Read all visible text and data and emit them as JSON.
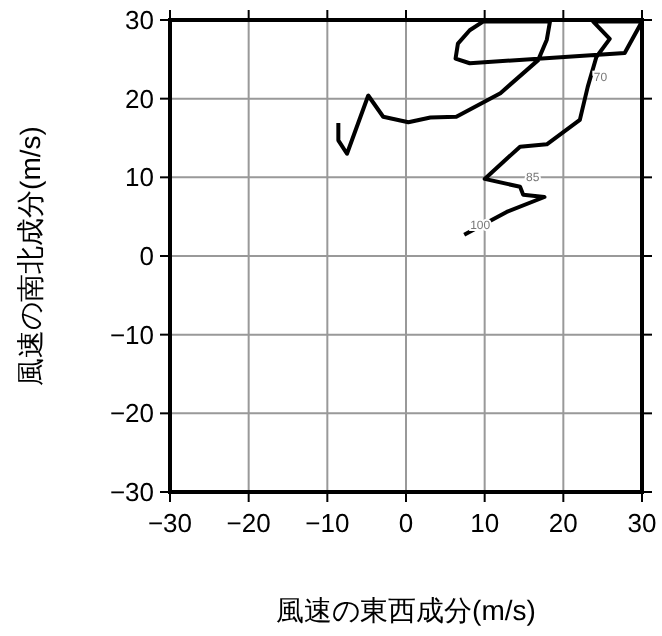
{
  "chart_data": {
    "type": "line",
    "xlabel": "風速の東西成分(m/s)",
    "ylabel": "風速の南北成分(m/s)",
    "xlim": [
      -30,
      30
    ],
    "ylim": [
      -30,
      30
    ],
    "xticks": [
      -30,
      -20,
      -10,
      0,
      10,
      20,
      30
    ],
    "yticks": [
      -30,
      -20,
      -10,
      0,
      10,
      20,
      30
    ],
    "grid": true,
    "marker": "none",
    "line_style": "solid",
    "series": [
      {
        "color": "#000000",
        "x": [
          7.4,
          12.8,
          17.6,
          14.9,
          14.5,
          10.0,
          14.5,
          17.9,
          22.1,
          23.1,
          24.2,
          25.9,
          23.8,
          30.0,
          27.8,
          8.1,
          6.3,
          6.6,
          8.1,
          9.8,
          18.3,
          17.9,
          16.8,
          12.0,
          6.4,
          3.1,
          0.3,
          -2.9,
          -4.8,
          -7.5,
          -8.6,
          -8.6
        ],
        "values": [
          2.7,
          5.6,
          7.5,
          7.8,
          8.8,
          9.8,
          13.9,
          14.2,
          17.3,
          21.5,
          25.3,
          27.6,
          29.8,
          29.8,
          25.8,
          24.5,
          25.1,
          27.0,
          28.7,
          29.8,
          29.8,
          27.5,
          24.9,
          20.7,
          17.7,
          17.6,
          17.0,
          17.7,
          20.4,
          13.0,
          14.7,
          16.9
        ]
      }
    ],
    "annotations": [
      {
        "text": "70",
        "x": 23.1,
        "y": 21.5
      },
      {
        "text": "85",
        "x": 14.5,
        "y": 8.8
      },
      {
        "text": "100",
        "x": 7.4,
        "y": 2.7
      }
    ]
  }
}
